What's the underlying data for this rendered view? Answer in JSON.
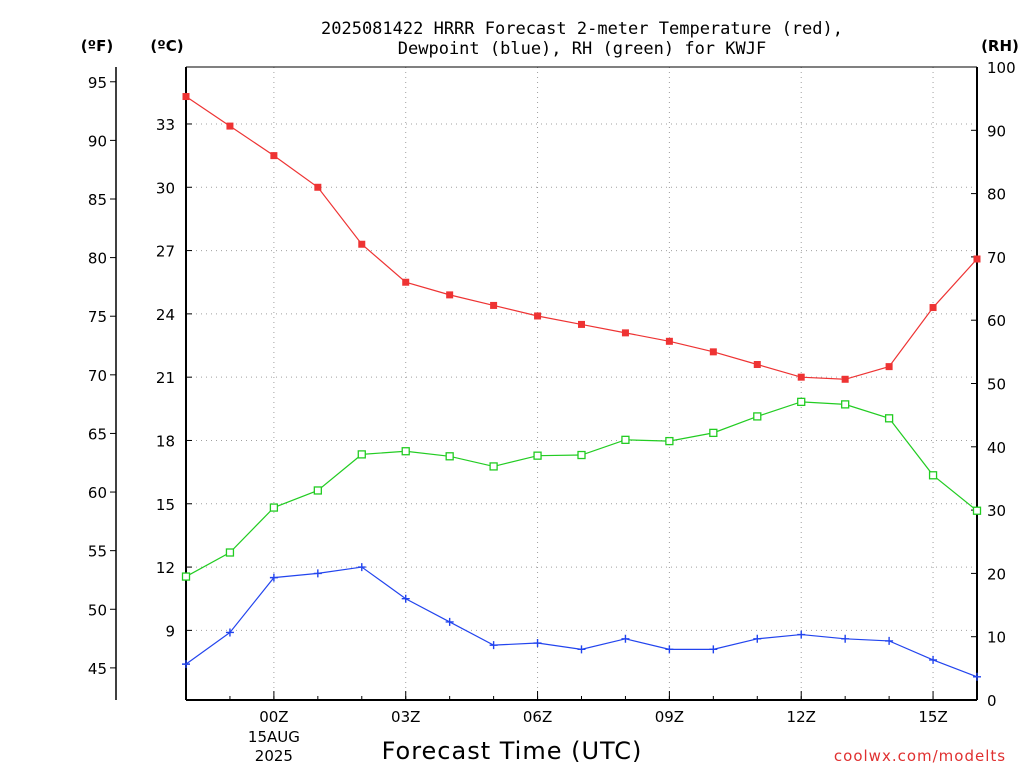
{
  "title": {
    "line1": "2025081422 HRRR Forecast 2-meter Temperature (red),",
    "line2": "Dewpoint (blue), RH (green) for KWJF"
  },
  "credit": "coolwx.com/modelts",
  "units": {
    "fahrenheit": "(ºF)",
    "celsius": "(ºC)",
    "rh": "(RH)"
  },
  "chart_data": {
    "type": "line",
    "title": "2025081422 HRRR Forecast 2-meter Temperature (red), Dewpoint (blue), RH (green) for KWJF",
    "xlabel": "Forecast Time (UTC)",
    "x_hours": [
      -2,
      -1,
      0,
      1,
      2,
      3,
      4,
      5,
      6,
      7,
      8,
      9,
      10,
      11,
      12,
      13,
      14,
      15,
      16
    ],
    "xlim": [
      -2,
      16
    ],
    "x_ticks": [
      {
        "hour": 0,
        "label": "00Z",
        "sub1": "15AUG",
        "sub2": "2025"
      },
      {
        "hour": 3,
        "label": "03Z"
      },
      {
        "hour": 6,
        "label": "06Z"
      },
      {
        "hour": 9,
        "label": "09Z"
      },
      {
        "hour": 12,
        "label": "12Z"
      },
      {
        "hour": 15,
        "label": "15Z"
      }
    ],
    "celsius_axis": {
      "ylim": [
        5.7,
        35.7
      ],
      "ticks": [
        9,
        12,
        15,
        18,
        21,
        24,
        27,
        30,
        33
      ]
    },
    "fahrenheit_axis": {
      "ticks": [
        45,
        50,
        55,
        60,
        65,
        70,
        75,
        80,
        85,
        90,
        95
      ]
    },
    "rh_axis": {
      "ylim": [
        0,
        100
      ],
      "ticks": [
        0,
        10,
        20,
        30,
        40,
        50,
        60,
        70,
        80,
        90,
        100
      ]
    },
    "grid": true,
    "series": [
      {
        "name": "Temperature",
        "axis": "celsius",
        "color": "#ee3333",
        "marker": "filled-square",
        "values": [
          34.3,
          32.9,
          31.5,
          30.0,
          27.3,
          25.5,
          24.9,
          24.4,
          23.9,
          23.5,
          23.1,
          22.7,
          22.2,
          21.6,
          21.0,
          20.9,
          21.5,
          24.3,
          26.6
        ]
      },
      {
        "name": "Dewpoint",
        "axis": "celsius",
        "color": "#2244ee",
        "marker": "plus",
        "values": [
          7.4,
          8.9,
          11.5,
          11.7,
          12.0,
          10.5,
          9.4,
          8.3,
          8.4,
          8.1,
          8.6,
          8.1,
          8.1,
          8.6,
          8.8,
          8.6,
          8.5,
          7.6,
          6.8
        ]
      },
      {
        "name": "RH",
        "axis": "rh",
        "color": "#22cc22",
        "marker": "open-square",
        "values": [
          19.5,
          23.3,
          30.4,
          33.1,
          38.8,
          39.3,
          38.5,
          36.9,
          38.6,
          38.7,
          41.1,
          40.9,
          42.2,
          44.8,
          47.1,
          46.7,
          44.5,
          35.5,
          29.9
        ]
      }
    ]
  }
}
